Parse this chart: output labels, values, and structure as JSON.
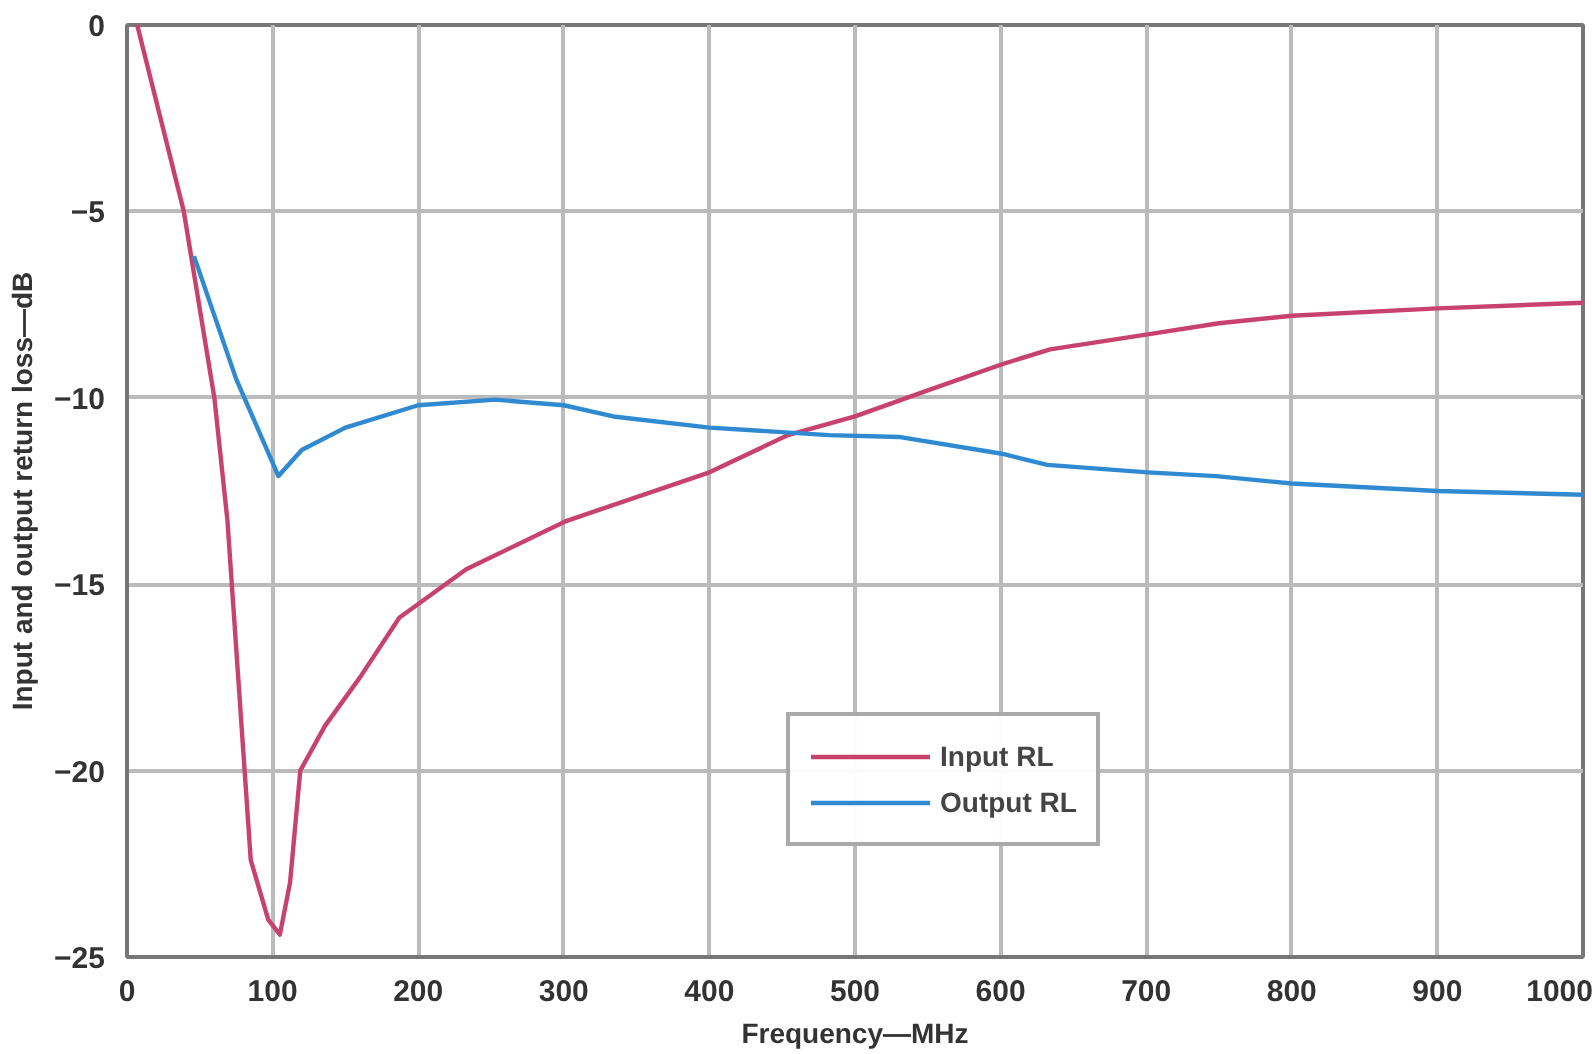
{
  "chart_data": {
    "type": "line",
    "xlabel": "Frequency—MHz",
    "ylabel": "Input and output return loss—dB",
    "xlim": [
      0,
      1000
    ],
    "ylim": [
      -25,
      0
    ],
    "xticks": [
      0,
      100,
      200,
      300,
      400,
      500,
      600,
      700,
      800,
      900,
      1000
    ],
    "yticks": [
      -25,
      -20,
      -15,
      -10,
      -5,
      0
    ],
    "grid": true,
    "legend": "bottom",
    "marker": "none",
    "line_style": "solid",
    "series": [
      {
        "name": "Input RL",
        "color": "#c8426e",
        "x": [
          7,
          39,
          60,
          69,
          85,
          97,
          105,
          112,
          119,
          136,
          160,
          187,
          233,
          302,
          400,
          454,
          500,
          550,
          601,
          634,
          701,
          750,
          800,
          900,
          1000
        ],
        "values": [
          0,
          -5,
          -10,
          -13.3,
          -22.4,
          -24.0,
          -24.4,
          -23.0,
          -20,
          -18.8,
          -17.5,
          -15.9,
          -14.6,
          -13.3,
          -12.0,
          -11.0,
          -10.5,
          -9.8,
          -9.1,
          -8.7,
          -8.3,
          -8.0,
          -7.8,
          -7.6,
          -7.45
        ]
      },
      {
        "name": "Output RL",
        "color": "#2f8ad2",
        "x": [
          46,
          75,
          104,
          120,
          150,
          200,
          253,
          300,
          334,
          400,
          482,
          530,
          601,
          632,
          701,
          748,
          800,
          900,
          1000
        ],
        "values": [
          -6.2,
          -9.5,
          -12.1,
          -11.4,
          -10.8,
          -10.2,
          -10.05,
          -10.2,
          -10.5,
          -10.8,
          -11.0,
          -11.05,
          -11.5,
          -11.8,
          -12.0,
          -12.1,
          -12.3,
          -12.5,
          -12.6
        ]
      }
    ]
  }
}
